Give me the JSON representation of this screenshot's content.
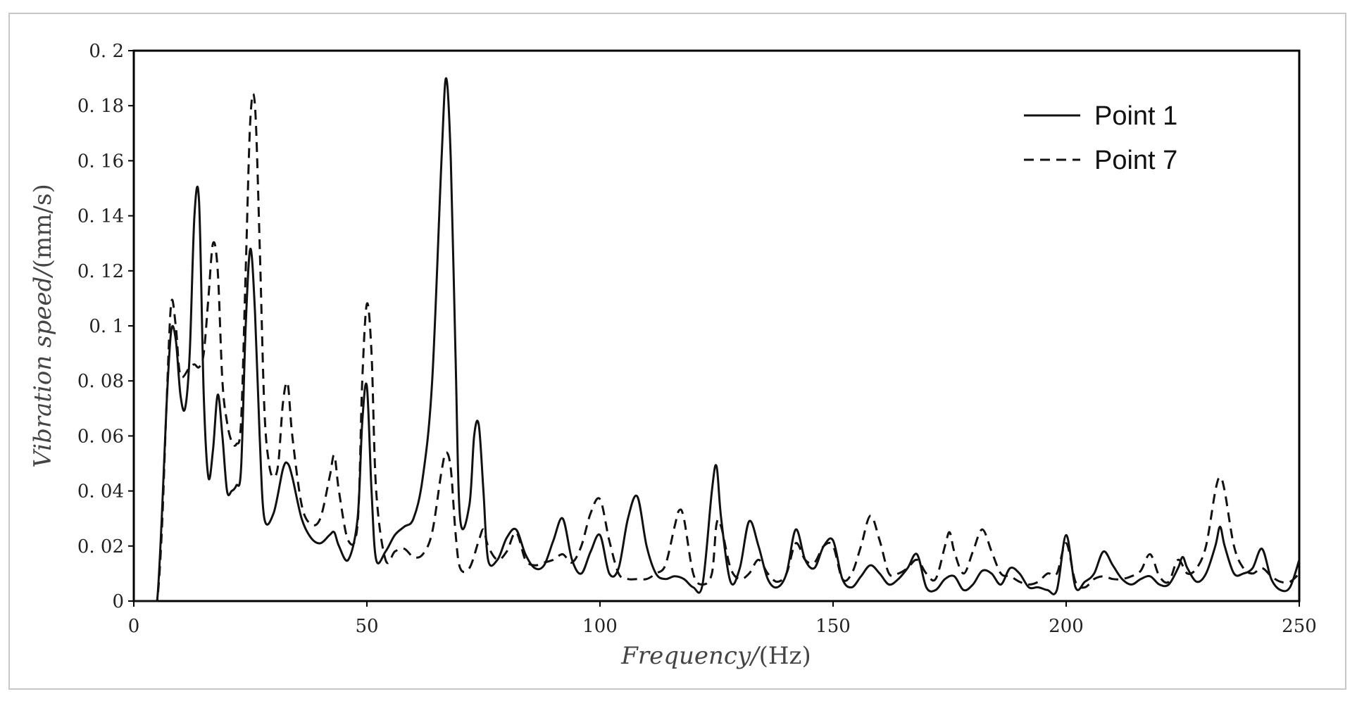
{
  "chart_data": {
    "type": "line",
    "title": "",
    "xlabel": "Frequency/",
    "xlabel_unit": "(Hz)",
    "ylabel": "Vibration speed/",
    "ylabel_unit": "(mm/s)",
    "xlim": [
      0,
      250
    ],
    "ylim": [
      0,
      0.2
    ],
    "x_ticks": [
      0,
      50,
      100,
      150,
      200,
      250
    ],
    "x_tick_labels": [
      "0",
      "50",
      "100",
      "150",
      "200",
      "250"
    ],
    "y_ticks": [
      0,
      0.02,
      0.04,
      0.06,
      0.08,
      0.1,
      0.12,
      0.14,
      0.16,
      0.18,
      0.2
    ],
    "y_tick_labels": [
      "0",
      "0. 02",
      "0. 04",
      "0. 06",
      "0. 08",
      "0. 1",
      "0. 12",
      "0. 14",
      "0. 16",
      "0. 18",
      "0. 2"
    ],
    "grid": false,
    "legend_position": "top-right",
    "series": [
      {
        "name": "Point 1",
        "style": "solid",
        "color": "#111111",
        "x": [
          0,
          4,
          5,
          6,
          7,
          8,
          9,
          10,
          11,
          12,
          13,
          14,
          15,
          16,
          17,
          18,
          19,
          20,
          21,
          22,
          23,
          24,
          25,
          26,
          27,
          28,
          30,
          32,
          33,
          34,
          36,
          38,
          40,
          42,
          43,
          44,
          46,
          48,
          49,
          50,
          51,
          52,
          54,
          56,
          58,
          60,
          62,
          64,
          66,
          67,
          68,
          69,
          70,
          72,
          73,
          74,
          75,
          76,
          78,
          80,
          82,
          84,
          86,
          88,
          90,
          92,
          94,
          96,
          98,
          100,
          102,
          104,
          106,
          108,
          110,
          112,
          114,
          116,
          118,
          120,
          122,
          124,
          125,
          126,
          128,
          130,
          132,
          134,
          136,
          138,
          140,
          142,
          144,
          146,
          148,
          150,
          152,
          154,
          156,
          158,
          160,
          162,
          164,
          166,
          168,
          170,
          172,
          174,
          176,
          178,
          180,
          182,
          184,
          186,
          188,
          190,
          192,
          194,
          196,
          198,
          200,
          202,
          204,
          206,
          208,
          210,
          212,
          214,
          216,
          218,
          220,
          222,
          224,
          225,
          226,
          228,
          230,
          232,
          233,
          234,
          236,
          238,
          240,
          242,
          244,
          246,
          248,
          250
        ],
        "y": [
          0,
          0,
          0,
          0.03,
          0.07,
          0.098,
          0.095,
          0.075,
          0.07,
          0.09,
          0.14,
          0.145,
          0.075,
          0.045,
          0.055,
          0.075,
          0.06,
          0.04,
          0.04,
          0.042,
          0.048,
          0.1,
          0.128,
          0.105,
          0.06,
          0.03,
          0.032,
          0.048,
          0.05,
          0.045,
          0.03,
          0.023,
          0.021,
          0.024,
          0.025,
          0.02,
          0.015,
          0.03,
          0.065,
          0.078,
          0.04,
          0.015,
          0.018,
          0.024,
          0.027,
          0.03,
          0.045,
          0.08,
          0.16,
          0.19,
          0.16,
          0.09,
          0.03,
          0.035,
          0.06,
          0.064,
          0.04,
          0.015,
          0.015,
          0.023,
          0.026,
          0.017,
          0.012,
          0.013,
          0.022,
          0.03,
          0.015,
          0.01,
          0.018,
          0.024,
          0.01,
          0.012,
          0.03,
          0.038,
          0.02,
          0.01,
          0.008,
          0.009,
          0.008,
          0.005,
          0.006,
          0.04,
          0.049,
          0.03,
          0.007,
          0.012,
          0.029,
          0.02,
          0.008,
          0.005,
          0.01,
          0.026,
          0.015,
          0.012,
          0.02,
          0.022,
          0.008,
          0.005,
          0.009,
          0.013,
          0.01,
          0.006,
          0.008,
          0.012,
          0.017,
          0.005,
          0.004,
          0.008,
          0.009,
          0.004,
          0.006,
          0.011,
          0.01,
          0.006,
          0.012,
          0.01,
          0.005,
          0.005,
          0.004,
          0.004,
          0.024,
          0.005,
          0.007,
          0.01,
          0.018,
          0.013,
          0.008,
          0.006,
          0.008,
          0.009,
          0.006,
          0.006,
          0.012,
          0.016,
          0.012,
          0.007,
          0.01,
          0.02,
          0.027,
          0.02,
          0.01,
          0.01,
          0.012,
          0.019,
          0.008,
          0.004,
          0.005,
          0.015
        ]
      },
      {
        "name": "Point 7",
        "style": "dashed",
        "color": "#111111",
        "x": [
          0,
          4,
          5,
          6,
          7,
          8,
          9,
          10,
          12,
          13,
          14,
          15,
          16,
          17,
          18,
          19,
          20,
          21,
          22,
          23,
          24,
          25,
          26,
          27,
          28,
          29,
          30,
          31,
          32,
          33,
          34,
          36,
          38,
          40,
          42,
          43,
          44,
          46,
          48,
          49,
          50,
          51,
          52,
          54,
          56,
          58,
          60,
          62,
          64,
          66,
          67,
          68,
          69,
          70,
          72,
          74,
          75,
          76,
          78,
          80,
          82,
          84,
          86,
          88,
          90,
          92,
          94,
          96,
          98,
          100,
          102,
          104,
          106,
          108,
          110,
          112,
          114,
          116,
          117,
          118,
          120,
          122,
          124,
          125,
          126,
          128,
          130,
          132,
          134,
          136,
          138,
          140,
          142,
          144,
          146,
          148,
          150,
          152,
          154,
          156,
          158,
          160,
          162,
          164,
          166,
          168,
          170,
          172,
          174,
          175,
          176,
          178,
          180,
          182,
          184,
          186,
          188,
          190,
          192,
          194,
          196,
          198,
          200,
          202,
          204,
          206,
          208,
          210,
          212,
          214,
          216,
          218,
          220,
          222,
          224,
          226,
          228,
          230,
          232,
          233,
          234,
          236,
          238,
          240,
          242,
          244,
          246,
          248,
          250
        ],
        "y": [
          0,
          0,
          0,
          0.025,
          0.07,
          0.108,
          0.1,
          0.082,
          0.085,
          0.086,
          0.085,
          0.09,
          0.11,
          0.13,
          0.12,
          0.08,
          0.065,
          0.058,
          0.057,
          0.065,
          0.12,
          0.175,
          0.18,
          0.13,
          0.07,
          0.05,
          0.045,
          0.05,
          0.072,
          0.079,
          0.06,
          0.035,
          0.028,
          0.03,
          0.045,
          0.053,
          0.04,
          0.022,
          0.028,
          0.08,
          0.108,
          0.09,
          0.04,
          0.015,
          0.018,
          0.019,
          0.016,
          0.017,
          0.025,
          0.047,
          0.054,
          0.048,
          0.025,
          0.012,
          0.012,
          0.022,
          0.026,
          0.02,
          0.015,
          0.018,
          0.025,
          0.015,
          0.013,
          0.014,
          0.015,
          0.017,
          0.014,
          0.02,
          0.032,
          0.037,
          0.022,
          0.01,
          0.008,
          0.008,
          0.008,
          0.01,
          0.013,
          0.027,
          0.033,
          0.03,
          0.01,
          0.006,
          0.01,
          0.028,
          0.027,
          0.012,
          0.008,
          0.01,
          0.015,
          0.01,
          0.007,
          0.01,
          0.021,
          0.015,
          0.014,
          0.02,
          0.02,
          0.008,
          0.01,
          0.02,
          0.031,
          0.022,
          0.01,
          0.01,
          0.012,
          0.015,
          0.01,
          0.008,
          0.02,
          0.025,
          0.018,
          0.01,
          0.018,
          0.026,
          0.018,
          0.01,
          0.009,
          0.007,
          0.006,
          0.007,
          0.01,
          0.01,
          0.021,
          0.007,
          0.005,
          0.008,
          0.009,
          0.008,
          0.008,
          0.009,
          0.011,
          0.017,
          0.009,
          0.007,
          0.015,
          0.01,
          0.012,
          0.02,
          0.04,
          0.045,
          0.04,
          0.02,
          0.012,
          0.01,
          0.012,
          0.009,
          0.007,
          0.007,
          0.01
        ]
      }
    ]
  }
}
